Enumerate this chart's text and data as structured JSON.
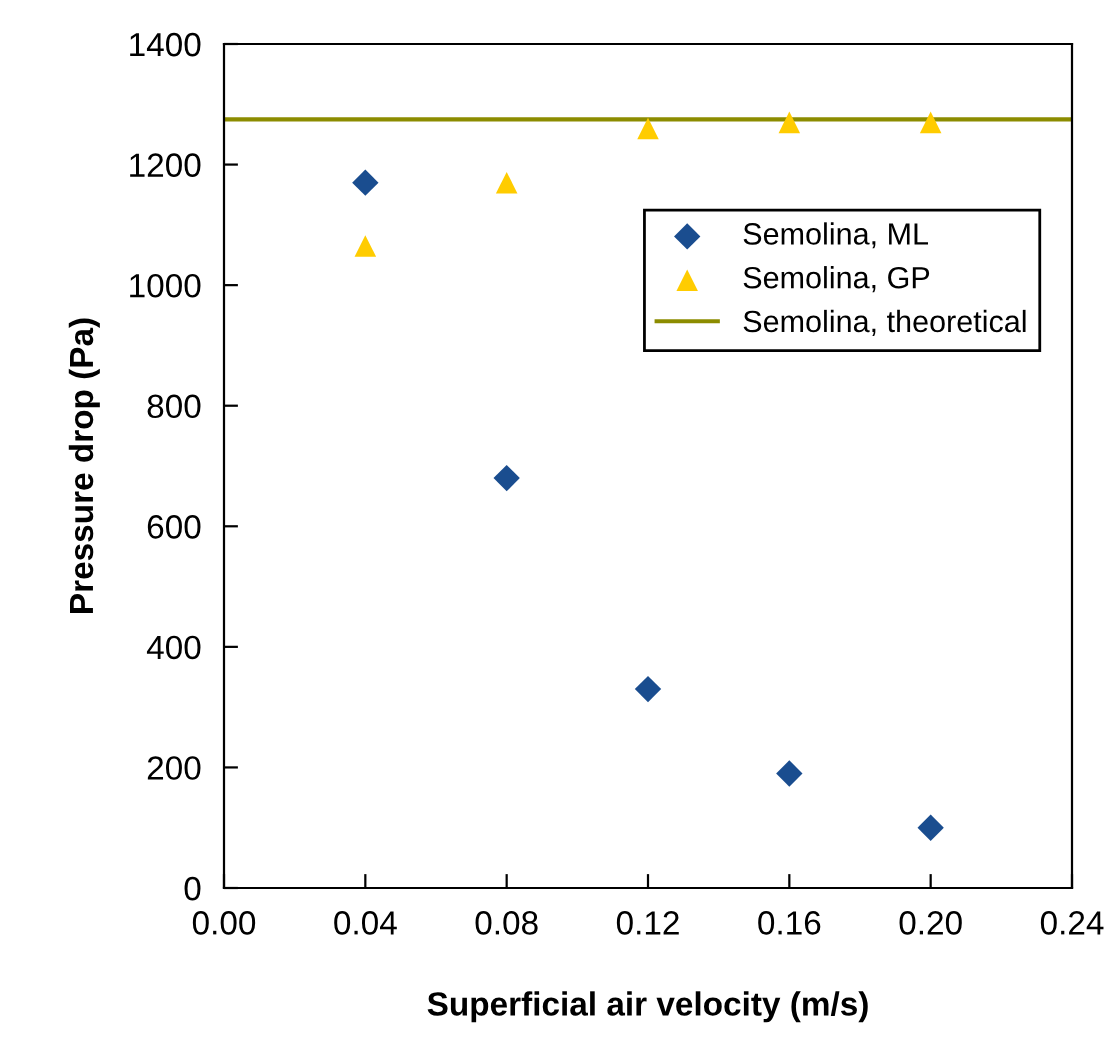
{
  "chart_data": {
    "type": "scatter",
    "xlabel": "Superficial air velocity (m/s)",
    "ylabel": "Pressure drop (Pa)",
    "x": [
      0.04,
      0.08,
      0.12,
      0.16,
      0.2
    ],
    "series": [
      {
        "name": "Semolina, ML",
        "color": "#1a4d8f",
        "marker": "diamond",
        "values": [
          1170,
          680,
          330,
          190,
          100
        ]
      },
      {
        "name": "Semolina, GP",
        "color": "#ffcc00",
        "marker": "triangle",
        "values": [
          1065,
          1170,
          1260,
          1270,
          1270
        ]
      },
      {
        "name": "Semolina, theoretical",
        "type": "line",
        "color": "#8c8c00",
        "x": [
          0,
          0.24
        ],
        "values": [
          1275,
          1275
        ],
        "marker": "none"
      }
    ],
    "xlim": [
      0,
      0.24
    ],
    "xticks": [
      {
        "value": 0,
        "label": "0.00"
      },
      {
        "value": 0.04,
        "label": "0.04"
      },
      {
        "value": 0.08,
        "label": "0.08"
      },
      {
        "value": 0.12,
        "label": "0.12"
      },
      {
        "value": 0.16,
        "label": "0.16"
      },
      {
        "value": 0.2,
        "label": "0.20"
      },
      {
        "value": 0.24,
        "label": "0.24"
      }
    ],
    "ylim": [
      0,
      1400
    ],
    "yticks": [
      0,
      200,
      400,
      600,
      800,
      1000,
      1200,
      1400
    ],
    "grid": false,
    "legend": "right"
  }
}
